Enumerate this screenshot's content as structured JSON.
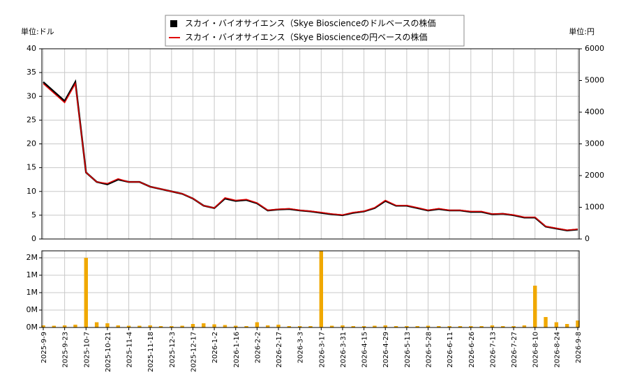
{
  "chart_data": [
    {
      "type": "line",
      "ylabel": "単位:ドル",
      "y2label": "単位:円",
      "series": [
        {
          "name": "スカイ・バイオサイエンス（Skye Bioscienceのドルベースの株価",
          "color": "#000000",
          "values": [
            33,
            31,
            29,
            33,
            14,
            12,
            11.5,
            12.5,
            12,
            12,
            11,
            10.5,
            10,
            9.5,
            8.5,
            7,
            6.5,
            8.5,
            8,
            8.2,
            7.5,
            6,
            6.2,
            6.3,
            6,
            5.8,
            5.5,
            5.2,
            5,
            5.5,
            5.8,
            6.5,
            8,
            7,
            7,
            6.5,
            6,
            6.3,
            6,
            6,
            5.7,
            5.7,
            5.2,
            5.3,
            5,
            4.5,
            4.5,
            2.6,
            2.2,
            1.8,
            2
          ]
        },
        {
          "name": "スカイ・バイオサイエンス（Skye Bioscienceの円ベースの株価",
          "color": "#e00000",
          "axis": "y2",
          "values": [
            4900,
            4600,
            4300,
            4900,
            2100,
            1800,
            1750,
            1900,
            1800,
            1800,
            1650,
            1580,
            1500,
            1430,
            1280,
            1050,
            980,
            1300,
            1220,
            1250,
            1140,
            910,
            940,
            960,
            910,
            880,
            840,
            790,
            760,
            840,
            880,
            990,
            1220,
            1060,
            1060,
            990,
            910,
            960,
            910,
            910,
            870,
            870,
            790,
            800,
            760,
            690,
            690,
            400,
            340,
            280,
            310
          ]
        }
      ],
      "ylim": [
        0,
        40
      ],
      "yticks": [
        0,
        5,
        10,
        15,
        20,
        25,
        30,
        35,
        40
      ],
      "y2lim": [
        0,
        6000
      ],
      "y2ticks": [
        0,
        1000,
        2000,
        3000,
        4000,
        5000,
        6000
      ],
      "grid": true
    },
    {
      "type": "bar",
      "color": "#f0a800",
      "categories": [
        "2025-9-9",
        null,
        "2025-9-23",
        null,
        "2025-10-7",
        null,
        "2025-10-21",
        null,
        "2025-11-4",
        null,
        "2025-11-18",
        null,
        "2025-12-3",
        null,
        "2025-12-17",
        null,
        "2026-1-2",
        null,
        "2026-1-16",
        null,
        "2026-2-2",
        null,
        "2026-2-17",
        null,
        "2026-3-3",
        null,
        "2026-3-17",
        null,
        "2026-3-31",
        null,
        "2026-4-15",
        null,
        "2026-4-29",
        null,
        "2026-5-13",
        null,
        "2026-5-28",
        null,
        "2026-6-11",
        null,
        "2026-6-26",
        null,
        "2026-7-13",
        null,
        "2026-7-27",
        null,
        "2026-8-10",
        null,
        "2026-8-24",
        null,
        "2026-9-8"
      ],
      "values": [
        60000,
        50000,
        60000,
        80000,
        2000000,
        150000,
        120000,
        60000,
        50000,
        50000,
        60000,
        40000,
        40000,
        50000,
        100000,
        120000,
        90000,
        70000,
        50000,
        40000,
        150000,
        60000,
        80000,
        40000,
        40000,
        40000,
        2200000,
        50000,
        60000,
        40000,
        40000,
        50000,
        60000,
        40000,
        40000,
        40000,
        50000,
        40000,
        40000,
        40000,
        40000,
        40000,
        60000,
        40000,
        40000,
        60000,
        1200000,
        300000,
        150000,
        100000,
        200000
      ],
      "ylim": [
        0,
        2200000
      ],
      "yticks": [
        {
          "value": 0,
          "label": "0M"
        },
        {
          "value": 500000,
          "label": "0M"
        },
        {
          "value": 1000000,
          "label": "1M"
        },
        {
          "value": 1500000,
          "label": "1M"
        },
        {
          "value": 2000000,
          "label": "2M"
        }
      ],
      "grid": true
    }
  ]
}
